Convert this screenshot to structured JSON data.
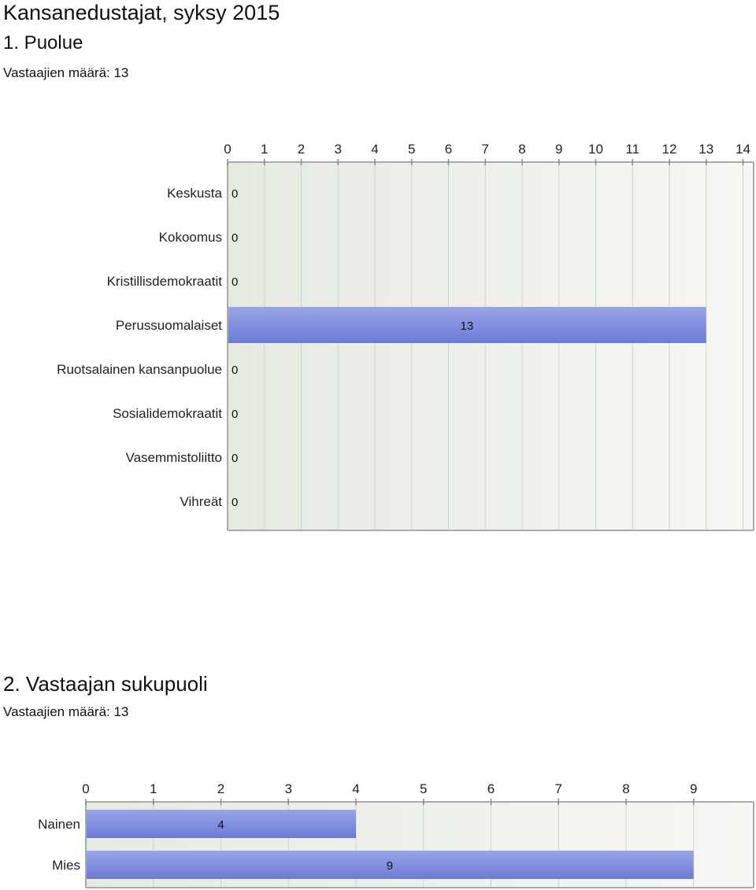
{
  "page": {
    "title": "Kansanedustajat, syksy 2015"
  },
  "questions": [
    {
      "title": "1. Puolue",
      "respondents": "Vastaajien määrä: 13"
    },
    {
      "title": "2. Vastaajan sukupuoli",
      "respondents": "Vastaajien määrä: 13"
    }
  ],
  "colors": {
    "bar_top": "#9aa4e8",
    "bar_bottom": "#6d7bd4",
    "plot_bg_left": "#e6ebe2",
    "plot_bg_right": "#f6f7f4",
    "grid": "#cfd4cb",
    "frame": "#a9aba7"
  },
  "chart_data": [
    {
      "type": "bar",
      "orientation": "horizontal",
      "categories": [
        "Keskusta",
        "Kokoomus",
        "Kristillisdemokraatit",
        "Perussuomalaiset",
        "Ruotsalainen kansanpuolue",
        "Sosialidemokraatit",
        "Vasemmistoliitto",
        "Vihreät"
      ],
      "values": [
        0,
        0,
        0,
        13,
        0,
        0,
        0,
        0
      ],
      "value_labels": [
        "0",
        "0",
        "0",
        "13",
        "0",
        "0",
        "0",
        "0"
      ],
      "xlim": [
        0,
        14
      ],
      "ticks": [
        "0",
        "1",
        "2",
        "3",
        "4",
        "5",
        "6",
        "7",
        "8",
        "9",
        "10",
        "11",
        "12",
        "13",
        "14"
      ],
      "grid": true
    },
    {
      "type": "bar",
      "orientation": "horizontal",
      "categories": [
        "Nainen",
        "Mies"
      ],
      "values": [
        4,
        9
      ],
      "value_labels": [
        "4",
        "9"
      ],
      "xlim": [
        0,
        9
      ],
      "ticks": [
        "0",
        "1",
        "2",
        "3",
        "4",
        "5",
        "6",
        "7",
        "8",
        "9"
      ],
      "grid": true
    }
  ]
}
